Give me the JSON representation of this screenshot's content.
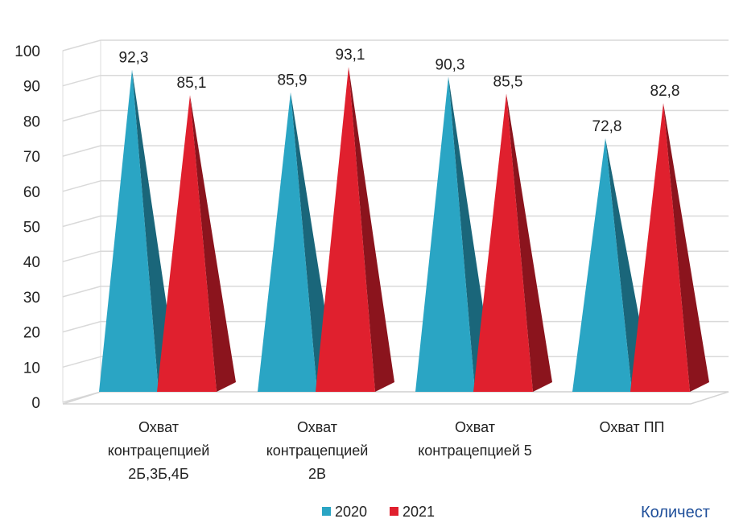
{
  "chart_data": {
    "type": "bar",
    "categories": [
      [
        "Охват",
        "контрацепцией",
        "2Б,3Б,4Б"
      ],
      [
        "Охват",
        "контрацепцией",
        "2В"
      ],
      [
        "Охват",
        "контрацепцией 5"
      ],
      [
        "Охват ПП"
      ]
    ],
    "series": [
      {
        "name": "2020",
        "values": [
          92.3,
          85.9,
          90.3,
          72.8
        ],
        "labels": [
          "92,3",
          "85,9",
          "90,3",
          "72,8"
        ],
        "color": "#2aa5c4"
      },
      {
        "name": "2021",
        "values": [
          85.1,
          93.1,
          85.5,
          82.8
        ],
        "labels": [
          "85,1",
          "93,1",
          "85,5",
          "82,8"
        ],
        "color": "#e0202e"
      }
    ],
    "ylim": [
      0,
      100
    ],
    "yticks": [
      "0",
      "10",
      "20",
      "30",
      "40",
      "50",
      "60",
      "70",
      "80",
      "90",
      "100"
    ],
    "grid": true,
    "legend": "bottom",
    "style": "3d-pyramid"
  },
  "trailing_text": "Количест"
}
